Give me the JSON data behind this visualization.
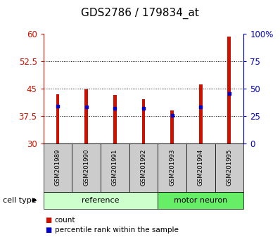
{
  "title": "GDS2786 / 179834_at",
  "samples": [
    "GSM201989",
    "GSM201990",
    "GSM201991",
    "GSM201992",
    "GSM201993",
    "GSM201994",
    "GSM201995"
  ],
  "count_values": [
    43.3,
    44.7,
    43.2,
    42.0,
    39.0,
    46.0,
    59.2
  ],
  "percentile_values": [
    40.2,
    40.0,
    39.5,
    39.5,
    37.7,
    40.0,
    43.5
  ],
  "y_min": 30,
  "y_max": 60,
  "y_ticks": [
    30,
    37.5,
    45,
    52.5,
    60
  ],
  "y_right_ticks": [
    0,
    25,
    50,
    75,
    100
  ],
  "y_right_labels": [
    "0",
    "25",
    "50",
    "75",
    "100%"
  ],
  "bar_color": "#cc1100",
  "blue_color": "#0000cc",
  "reference_color": "#ccffcc",
  "motor_neuron_color": "#66ee66",
  "sample_box_color": "#cccccc",
  "group_label_reference": "reference",
  "group_label_motor": "motor neuron",
  "cell_type_label": "cell type",
  "legend_count": "count",
  "legend_pct": "percentile rank within the sample",
  "bar_width": 0.12,
  "title_fontsize": 11,
  "axis_color_left": "#cc1100",
  "axis_color_right": "#0000cc",
  "n_ref": 4,
  "n_motor": 3
}
